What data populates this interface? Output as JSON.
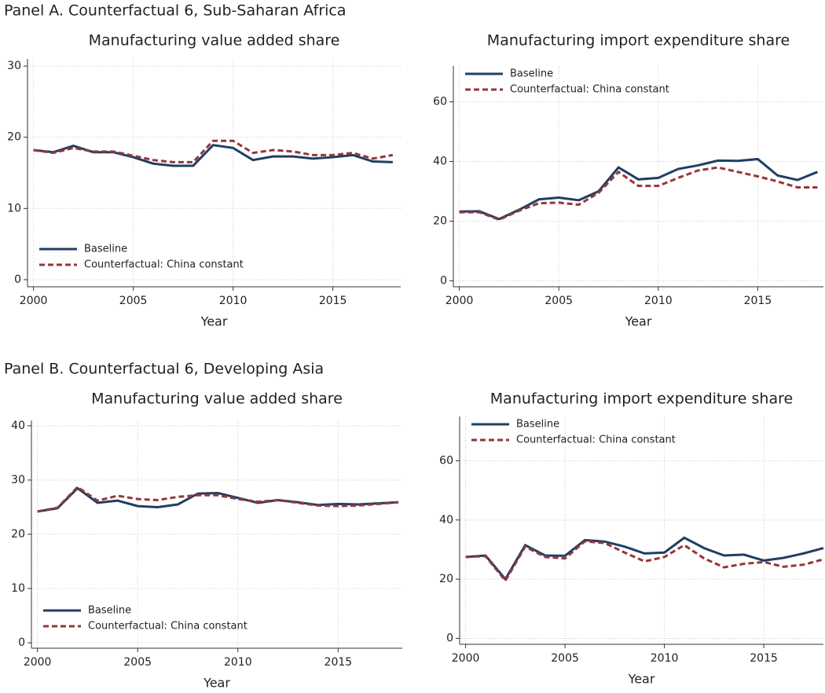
{
  "chart_data": [
    {
      "type": "line",
      "panel": "Panel A. Counterfactual 6, Sub-Saharan Africa",
      "title": "Manufacturing value added share",
      "xlabel": "Year",
      "x": [
        2000,
        2001,
        2002,
        2003,
        2004,
        2005,
        2006,
        2007,
        2008,
        2009,
        2010,
        2011,
        2012,
        2013,
        2014,
        2015,
        2016,
        2017,
        2018
      ],
      "xlim": [
        1999.7,
        2018.4
      ],
      "xticks": [
        2000,
        2005,
        2010,
        2015
      ],
      "ylim": [
        -1,
        31
      ],
      "yticks": [
        0,
        10,
        20,
        30
      ],
      "grid": true,
      "legend": "lower left",
      "series": [
        {
          "name": "Baseline",
          "color": "#1f3f63",
          "dash": false,
          "values": [
            18.2,
            17.9,
            18.8,
            17.9,
            17.9,
            17.2,
            16.3,
            16.0,
            16.0,
            18.9,
            18.5,
            16.8,
            17.3,
            17.3,
            17.0,
            17.2,
            17.5,
            16.6,
            16.5
          ]
        },
        {
          "name": "Counterfactual: China constant",
          "color": "#94363c",
          "dash": true,
          "values": [
            18.2,
            17.8,
            18.5,
            18.0,
            18.0,
            17.4,
            16.8,
            16.5,
            16.5,
            19.5,
            19.5,
            17.8,
            18.2,
            18.0,
            17.5,
            17.5,
            17.8,
            17.0,
            17.5
          ]
        }
      ]
    },
    {
      "type": "line",
      "title": "Manufacturing import expenditure share",
      "xlabel": "Year",
      "x": [
        2000,
        2001,
        2002,
        2003,
        2004,
        2005,
        2006,
        2007,
        2008,
        2009,
        2010,
        2011,
        2012,
        2013,
        2014,
        2015,
        2016,
        2017,
        2018
      ],
      "xlim": [
        1999.7,
        2018.3
      ],
      "xticks": [
        2000,
        2005,
        2010,
        2015
      ],
      "ylim": [
        -2,
        72
      ],
      "yticks": [
        0,
        20,
        40,
        60
      ],
      "grid": true,
      "legend": "upper left",
      "series": [
        {
          "name": "Baseline",
          "color": "#1f3f63",
          "dash": false,
          "values": [
            23.2,
            23.3,
            20.7,
            23.8,
            27.3,
            27.9,
            27.0,
            30.0,
            38.0,
            34.0,
            34.5,
            37.5,
            38.7,
            40.3,
            40.2,
            40.8,
            35.3,
            33.8,
            36.5
          ]
        },
        {
          "name": "Counterfactual: China constant",
          "color": "#94363c",
          "dash": true,
          "values": [
            23.0,
            23.0,
            20.5,
            23.5,
            26.0,
            26.2,
            25.5,
            29.5,
            36.5,
            31.8,
            31.8,
            34.5,
            37.0,
            38.0,
            36.5,
            35.0,
            33.3,
            31.3,
            31.3
          ]
        }
      ]
    },
    {
      "type": "line",
      "panel": "Panel B. Counterfactual 6, Developing Asia",
      "title": "Manufacturing value added share",
      "xlabel": "Year",
      "x": [
        2000,
        2001,
        2002,
        2003,
        2004,
        2005,
        2006,
        2007,
        2008,
        2009,
        2010,
        2011,
        2012,
        2013,
        2014,
        2015,
        2016,
        2017,
        2018
      ],
      "xlim": [
        1999.7,
        2018.2
      ],
      "xticks": [
        2000,
        2005,
        2010,
        2015
      ],
      "ylim": [
        -1,
        41
      ],
      "yticks": [
        0,
        10,
        20,
        30,
        40
      ],
      "grid": true,
      "legend": "lower left",
      "series": [
        {
          "name": "Baseline",
          "color": "#1f3f63",
          "dash": false,
          "values": [
            24.2,
            24.8,
            28.5,
            25.8,
            26.2,
            25.2,
            25.0,
            25.5,
            27.5,
            27.6,
            26.7,
            25.8,
            26.3,
            25.9,
            25.4,
            25.6,
            25.5,
            25.7,
            25.9
          ]
        },
        {
          "name": "Counterfactual: China constant",
          "color": "#94363c",
          "dash": true,
          "values": [
            24.2,
            24.9,
            28.7,
            26.2,
            27.1,
            26.5,
            26.3,
            26.9,
            27.2,
            27.2,
            26.5,
            26.0,
            26.3,
            25.8,
            25.3,
            25.2,
            25.3,
            25.6,
            25.9
          ]
        }
      ]
    },
    {
      "type": "line",
      "title": "Manufacturing import expenditure share",
      "xlabel": "Year",
      "x": [
        2000,
        2001,
        2002,
        2003,
        2004,
        2005,
        2006,
        2007,
        2008,
        2009,
        2010,
        2011,
        2012,
        2013,
        2014,
        2015,
        2016,
        2017,
        2018
      ],
      "xlim": [
        1999.7,
        2018.0
      ],
      "xticks": [
        2000,
        2005,
        2010,
        2015
      ],
      "ylim": [
        -2,
        75
      ],
      "yticks": [
        0,
        20,
        40,
        60
      ],
      "grid": true,
      "legend": "upper left",
      "series": [
        {
          "name": "Baseline",
          "color": "#1f3f63",
          "dash": false,
          "values": [
            27.5,
            28.0,
            20.0,
            31.5,
            28.0,
            27.9,
            33.2,
            32.7,
            31.0,
            28.7,
            29.0,
            34.0,
            30.5,
            28.0,
            28.3,
            26.3,
            27.2,
            28.7,
            30.5
          ]
        },
        {
          "name": "Counterfactual: China constant",
          "color": "#94363c",
          "dash": true,
          "values": [
            27.5,
            27.8,
            19.5,
            31.0,
            27.5,
            27.0,
            32.8,
            32.2,
            29.0,
            26.0,
            27.5,
            31.5,
            27.0,
            24.0,
            25.2,
            25.8,
            24.2,
            24.9,
            26.7
          ]
        }
      ]
    }
  ]
}
